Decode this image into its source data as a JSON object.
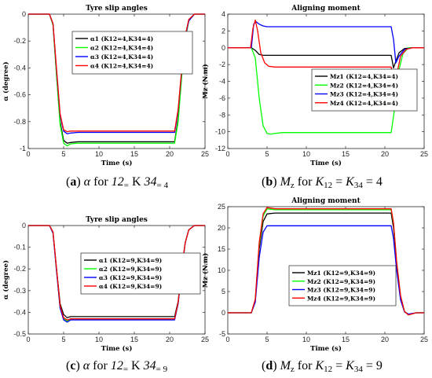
{
  "chart_data": [
    {
      "type": "line",
      "title": "Tyre slip angles",
      "xlabel": "Time (s)",
      "ylabel": "α (degree)",
      "xlim": [
        0,
        25
      ],
      "ylim": [
        -1,
        0
      ],
      "xticks": [
        0,
        5,
        10,
        15,
        20,
        25
      ],
      "yticks": [
        -1,
        -0.8,
        -0.6,
        -0.4,
        -0.2,
        0
      ],
      "ytick_labels": [
        "-1",
        "-0.8",
        "-0.6",
        "-0.4",
        "-0.2",
        "0"
      ],
      "legend_position": "right",
      "series": [
        {
          "name": "α1 (K12=4,K34=4)",
          "color": "#000000",
          "x": [
            0,
            3,
            3.5,
            4,
            4.5,
            5,
            5.5,
            6,
            7,
            20.7,
            21.2,
            21.7,
            22.2,
            22.7,
            23.5,
            25
          ],
          "y": [
            0,
            0,
            -0.08,
            -0.45,
            -0.8,
            -0.94,
            -0.96,
            -0.955,
            -0.95,
            -0.95,
            -0.78,
            -0.45,
            -0.18,
            -0.05,
            0,
            0
          ]
        },
        {
          "name": "α2 (K12=4,K34=4)",
          "color": "#00ff00",
          "x": [
            0,
            3,
            3.5,
            4,
            4.5,
            5,
            5.5,
            6,
            7,
            20.7,
            21.2,
            21.7,
            22.2,
            22.7,
            23.5,
            25
          ],
          "y": [
            0,
            0,
            -0.08,
            -0.46,
            -0.82,
            -0.96,
            -0.98,
            -0.965,
            -0.96,
            -0.96,
            -0.8,
            -0.47,
            -0.19,
            -0.05,
            0,
            0
          ]
        },
        {
          "name": "α3 (K12=4,K34=4)",
          "color": "#0000ff",
          "x": [
            0,
            3,
            3.5,
            4,
            4.5,
            5,
            5.5,
            6,
            7,
            20.7,
            21.2,
            21.7,
            22.2,
            22.7,
            23.5,
            25
          ],
          "y": [
            0,
            0,
            -0.07,
            -0.42,
            -0.75,
            -0.87,
            -0.89,
            -0.885,
            -0.88,
            -0.88,
            -0.72,
            -0.42,
            -0.17,
            -0.05,
            0,
            0
          ]
        },
        {
          "name": "α4 (K12=4,K34=4)",
          "color": "#ff0000",
          "x": [
            0,
            3,
            3.5,
            4,
            4.5,
            5,
            5.5,
            6,
            7,
            20.7,
            21.2,
            21.7,
            22.2,
            22.7,
            23.5,
            25
          ],
          "y": [
            0,
            0,
            -0.07,
            -0.41,
            -0.74,
            -0.86,
            -0.875,
            -0.87,
            -0.87,
            -0.87,
            -0.71,
            -0.41,
            -0.16,
            -0.04,
            0,
            0
          ]
        }
      ]
    },
    {
      "type": "line",
      "title": "Aligning moment",
      "xlabel": "Time (s)",
      "ylabel": "Mz (N.m)",
      "xlim": [
        0,
        25
      ],
      "ylim": [
        -12,
        4
      ],
      "xticks": [
        0,
        5,
        10,
        15,
        20,
        25
      ],
      "yticks": [
        -12,
        -10,
        -8,
        -6,
        -4,
        -2,
        0,
        2,
        4
      ],
      "ytick_labels": [
        "-12",
        "-10",
        "-8",
        "-6",
        "-4",
        "-2",
        "0",
        "2",
        "4"
      ],
      "legend_position": "right",
      "series": [
        {
          "name": "Mz1 (K12=4,K34=4)",
          "color": "#000000",
          "x": [
            0,
            3,
            3.5,
            4,
            4.5,
            5,
            6,
            20.8,
            21.1,
            21.4,
            21.8,
            22.5,
            23.5,
            25
          ],
          "y": [
            0,
            0,
            -0.3,
            -0.8,
            -0.9,
            -0.9,
            -0.9,
            -0.9,
            -2.4,
            -1.6,
            -0.6,
            -0.1,
            0,
            0
          ]
        },
        {
          "name": "Mz2 (K12=4,K34=4)",
          "color": "#00ff00",
          "x": [
            0,
            3,
            3.5,
            4,
            4.5,
            5,
            5.5,
            6,
            7,
            20.8,
            21.2,
            21.7,
            22.3,
            23,
            25
          ],
          "y": [
            0,
            0,
            -1.2,
            -6,
            -9.3,
            -10.2,
            -10.3,
            -10.2,
            -10.1,
            -10.1,
            -7.5,
            -3,
            -0.7,
            0,
            0
          ]
        },
        {
          "name": "Mz3 (K12=4,K34=4)",
          "color": "#0000ff",
          "x": [
            0,
            3,
            3.3,
            3.6,
            4,
            4.5,
            5,
            6,
            20.8,
            21.1,
            21.4,
            21.8,
            22.5,
            23.5,
            25
          ],
          "y": [
            0,
            0,
            2.8,
            3.1,
            2.8,
            2.6,
            2.5,
            2.5,
            2.5,
            1.0,
            -1.8,
            -1.0,
            -0.2,
            0,
            0
          ]
        },
        {
          "name": "Mz4 (K12=4,K34=4)",
          "color": "#ff0000",
          "x": [
            0,
            2.9,
            3.2,
            3.5,
            3.8,
            4.2,
            4.7,
            5.2,
            6,
            20.8,
            21.1,
            21.3,
            21.6,
            22,
            22.7,
            23.5,
            25
          ],
          "y": [
            0,
            0,
            2.3,
            3.3,
            2.0,
            -0.6,
            -1.8,
            -2.2,
            -2.3,
            -2.3,
            -3.5,
            -4.3,
            -2.8,
            -1.0,
            -0.2,
            0,
            0
          ]
        }
      ]
    },
    {
      "type": "line",
      "title": "Tyre slip angles",
      "xlabel": "Time (s)",
      "ylabel": "α (degree)",
      "xlim": [
        0,
        25
      ],
      "ylim": [
        -0.5,
        0
      ],
      "xticks": [
        0,
        5,
        10,
        15,
        20,
        25
      ],
      "yticks": [
        -0.5,
        -0.4,
        -0.3,
        -0.2,
        -0.1,
        0
      ],
      "ytick_labels": [
        "-0.5",
        "-0.4",
        "-0.3",
        "-0.2",
        "-0.1",
        "0"
      ],
      "legend_position": "right",
      "series": [
        {
          "name": "α1 (K12=9,K34=9)",
          "color": "#000000",
          "x": [
            0,
            3,
            3.5,
            4,
            4.5,
            5,
            5.5,
            6,
            7,
            20.7,
            21.2,
            21.7,
            22.2,
            22.7,
            23.5,
            25
          ],
          "y": [
            0,
            0,
            -0.03,
            -0.2,
            -0.36,
            -0.41,
            -0.425,
            -0.42,
            -0.42,
            -0.42,
            -0.35,
            -0.2,
            -0.08,
            -0.02,
            0,
            0
          ]
        },
        {
          "name": "α2 (K12=9,K34=9)",
          "color": "#00ff00",
          "x": [
            0,
            3,
            3.5,
            4,
            4.5,
            5,
            5.5,
            6,
            7,
            20.7,
            21.2,
            21.7,
            22.2,
            22.7,
            23.5,
            25
          ],
          "y": [
            0,
            0,
            -0.035,
            -0.21,
            -0.38,
            -0.43,
            -0.44,
            -0.43,
            -0.43,
            -0.43,
            -0.36,
            -0.21,
            -0.08,
            -0.02,
            0,
            0
          ]
        },
        {
          "name": "α3 (K12=9,K34=9)",
          "color": "#0000ff",
          "x": [
            0,
            3,
            3.5,
            4,
            4.5,
            5,
            5.5,
            6,
            7,
            20.7,
            21.2,
            21.7,
            22.2,
            22.7,
            23.5,
            25
          ],
          "y": [
            0,
            0,
            -0.035,
            -0.21,
            -0.38,
            -0.435,
            -0.445,
            -0.435,
            -0.435,
            -0.435,
            -0.36,
            -0.21,
            -0.08,
            -0.02,
            0,
            0
          ]
        },
        {
          "name": "α4 (K12=9,K34=9)",
          "color": "#ff0000",
          "x": [
            0,
            3,
            3.5,
            4,
            4.5,
            5,
            5.5,
            6,
            7,
            20.7,
            21.2,
            21.7,
            22.2,
            22.7,
            23.5,
            25
          ],
          "y": [
            0,
            0,
            -0.03,
            -0.2,
            -0.37,
            -0.425,
            -0.435,
            -0.43,
            -0.43,
            -0.43,
            -0.355,
            -0.2,
            -0.08,
            -0.02,
            0,
            0
          ]
        }
      ]
    },
    {
      "type": "line",
      "title": "Aligning moment",
      "xlabel": "Time (s)",
      "ylabel": "Mz (N.m)",
      "xlim": [
        0,
        25
      ],
      "ylim": [
        -5,
        25
      ],
      "xticks": [
        0,
        5,
        10,
        15,
        20,
        25
      ],
      "yticks": [
        -5,
        0,
        5,
        10,
        15,
        20,
        25
      ],
      "ytick_labels": [
        "-5",
        "0",
        "5",
        "10",
        "15",
        "20",
        "25"
      ],
      "legend_position": "center",
      "series": [
        {
          "name": "Mz1 (K12=9,K34=9)",
          "color": "#000000",
          "x": [
            0,
            3,
            3.5,
            4,
            4.5,
            5,
            6,
            20.8,
            21.1,
            21.5,
            22,
            22.5,
            23,
            24,
            25
          ],
          "y": [
            0,
            0,
            3,
            15,
            21.5,
            23.3,
            23.5,
            23.5,
            20,
            11,
            3.5,
            0.3,
            -0.4,
            0,
            0
          ]
        },
        {
          "name": "Mz2 (K12=9,K34=9)",
          "color": "#00ff00",
          "x": [
            0,
            3,
            3.5,
            4,
            4.5,
            5,
            6,
            20.8,
            21.1,
            21.5,
            22,
            22.5,
            23,
            24,
            25
          ],
          "y": [
            0,
            0,
            3,
            16,
            22.8,
            24.5,
            24.3,
            24.3,
            21,
            12,
            4,
            0.3,
            -0.5,
            0,
            0
          ]
        },
        {
          "name": "Mz3 (K12=9,K34=9)",
          "color": "#0000ff",
          "x": [
            0,
            3,
            3.5,
            4,
            4.5,
            5,
            6,
            20.8,
            21.1,
            21.5,
            22,
            22.5,
            23,
            24,
            25
          ],
          "y": [
            0,
            0,
            2.5,
            13,
            19,
            20.5,
            20.5,
            20.5,
            17.5,
            10,
            3,
            0.2,
            -0.3,
            0,
            0
          ]
        },
        {
          "name": "Mz4 (K12=9,K34=9)",
          "color": "#ff0000",
          "x": [
            0,
            3,
            3.5,
            4,
            4.5,
            5,
            6,
            20.8,
            21.1,
            21.5,
            22,
            22.5,
            23,
            24,
            25
          ],
          "y": [
            0,
            0,
            3.2,
            16.5,
            23.3,
            24.8,
            24.5,
            24.5,
            21.2,
            12,
            4,
            0.3,
            -0.5,
            0,
            0
          ]
        }
      ]
    }
  ],
  "captions": [
    {
      "letter": "a",
      "parts": [
        "α",
        "for",
        "K",
        "12",
        "=",
        "K",
        "34",
        "= 4"
      ]
    },
    {
      "letter": "b",
      "parts": [
        "M",
        "z",
        "for",
        "K",
        "12",
        "=",
        "K",
        "34",
        "= 4"
      ]
    },
    {
      "letter": "c",
      "parts": [
        "α",
        "for",
        "K",
        "12",
        "=",
        "K",
        "34",
        "= 9"
      ]
    },
    {
      "letter": "d",
      "parts": [
        "M",
        "z",
        "for",
        "K",
        "12",
        "=",
        "K",
        "34",
        "= 9"
      ]
    }
  ]
}
